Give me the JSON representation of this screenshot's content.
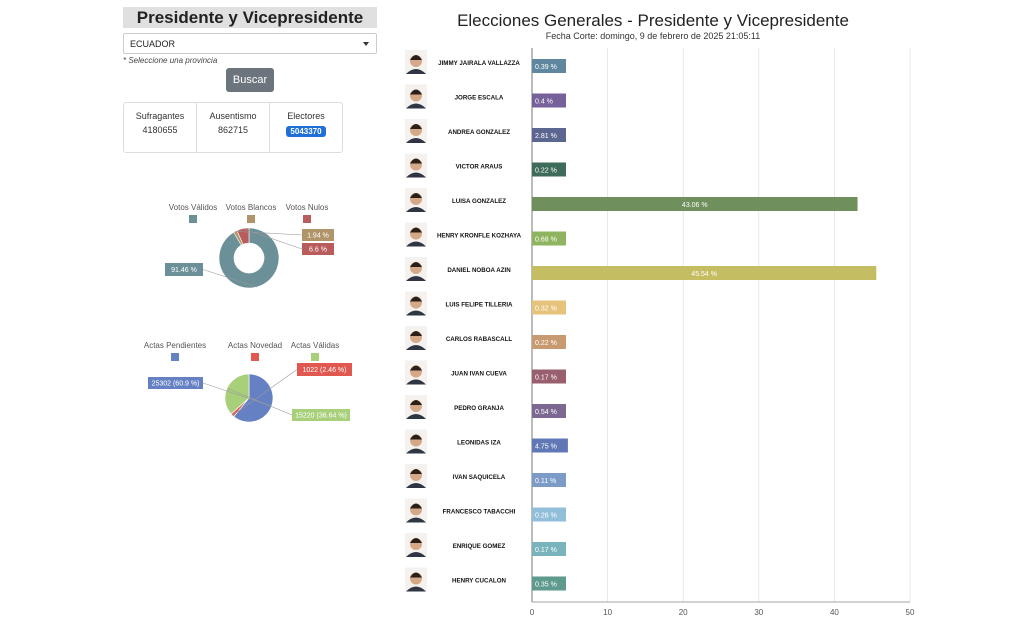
{
  "left_panel": {
    "title": "Presidente y Vicepresidente",
    "province_select": "ECUADOR",
    "hint": "* Seleccione una provincia",
    "search_button": "Buscar",
    "stats": [
      {
        "label": "Sufragantes",
        "value": "4180655"
      },
      {
        "label": "Ausentismo",
        "value": "862715"
      },
      {
        "label": "Electores",
        "value": "5043370"
      }
    ]
  },
  "header": {
    "title": "Elecciones Generales - Presidente y Vicepresidente",
    "subtitle": "Fecha Corte: domingo, 9 de febrero de 2025 21:05:11"
  },
  "chart_data": [
    {
      "type": "pie",
      "title": "",
      "legend": [
        "Votos Válidos",
        "Votos Blancos",
        "Votos Nulos"
      ],
      "values": [
        91.46,
        1.94,
        6.6
      ],
      "labels": [
        "91.46 %",
        "1.94 %",
        "6.6 %"
      ],
      "colors": [
        "#6b9098",
        "#b0956a",
        "#b85c5c"
      ]
    },
    {
      "type": "pie",
      "title": "",
      "legend": [
        "Actas Pendientes",
        "Actas Novedad",
        "Actas Válidas"
      ],
      "values": [
        25302,
        1022,
        15220
      ],
      "labels": [
        "25302 (60.9 %)",
        "1022 (2.46 %)",
        "15220 (36.64 %)"
      ],
      "colors": [
        "#6581c4",
        "#e0584f",
        "#a8d07a"
      ]
    },
    {
      "type": "bar",
      "orientation": "horizontal",
      "title": "Elecciones Generales - Presidente y Vicepresidente",
      "categories": [
        "JIMMY JAIRALA VALLAZZA",
        "JORGE ESCALA",
        "ANDREA GONZALEZ",
        "VICTOR ARAUS",
        "LUISA GONZALEZ",
        "HENRY KRONFLE KOZHAYA",
        "DANIEL NOBOA AZIN",
        "LUIS FELIPE TILLERIA",
        "CARLOS RABASCALL",
        "JUAN IVAN CUEVA",
        "PEDRO GRANJA",
        "LEONIDAS IZA",
        "IVAN SAQUICELA",
        "FRANCESCO TABACCHI",
        "ENRIQUE GOMEZ",
        "HENRY CUCALON"
      ],
      "values": [
        0.39,
        0.4,
        2.81,
        0.22,
        43.06,
        0.68,
        45.54,
        0.32,
        0.22,
        0.17,
        0.54,
        4.75,
        0.11,
        0.26,
        0.17,
        0.35
      ],
      "value_labels": [
        "0.39 %",
        "0.4 %",
        "2.81 %",
        "0.22 %",
        "43.06 %",
        "0.68 %",
        "45.54 %",
        "0.32 %",
        "0.22 %",
        "0.17 %",
        "0.54 %",
        "4.75 %",
        "0.11 %",
        "0.26 %",
        "0.17 %",
        "0.35 %"
      ],
      "colors": [
        "#5f87a0",
        "#76619a",
        "#5b6691",
        "#3f6b5a",
        "#6f8f5c",
        "#8fb45f",
        "#c4bd62",
        "#e6c37b",
        "#c89a6f",
        "#9a5f6f",
        "#7d6891",
        "#6078b5",
        "#7c9cc7",
        "#91bed8",
        "#79b4bd",
        "#5e9a8e"
      ],
      "xlim": [
        0,
        50
      ],
      "xticks": [
        "0",
        "10",
        "20",
        "30",
        "40",
        "50"
      ],
      "grid": true
    }
  ]
}
